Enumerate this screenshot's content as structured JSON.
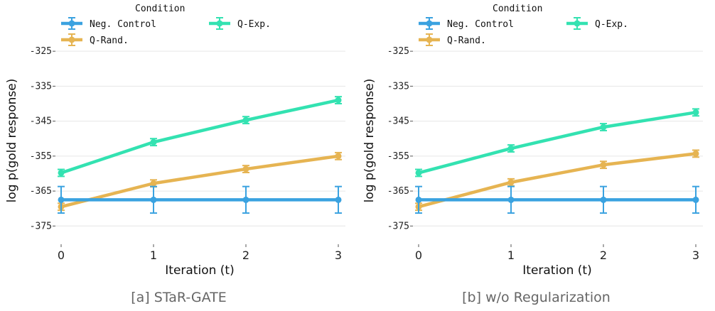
{
  "legend": {
    "title": "Condition"
  },
  "chart_data": [
    {
      "type": "line",
      "caption": "[a] STaR-GATE",
      "xlabel": "Iteration (t)",
      "ylabel": "log p(gold response)",
      "x": [
        0,
        1,
        2,
        3
      ],
      "x_ticks": [
        "0",
        "1",
        "2",
        "3"
      ],
      "y_ticks": [
        "-325",
        "-335",
        "-345",
        "-355",
        "-365",
        "-375"
      ],
      "y_tick_values": [
        -325,
        -335,
        -345,
        -355,
        -365,
        -375
      ],
      "ylim": [
        -379,
        -314
      ],
      "grid": true,
      "series": [
        {
          "name": "Neg. Control",
          "color": "#3aa2e0",
          "values": [
            -367.5,
            -367.5,
            -367.5,
            -367.5
          ],
          "err": [
            3.8,
            3.8,
            3.8,
            3.8
          ]
        },
        {
          "name": "Q-Exp.",
          "color": "#33e2b1",
          "values": [
            -359.8,
            -351.0,
            -344.7,
            -339.0
          ],
          "err": [
            1.0,
            1.0,
            1.0,
            1.0
          ]
        },
        {
          "name": "Q-Rand.",
          "color": "#e6b452",
          "values": [
            -369.5,
            -362.8,
            -358.7,
            -355.0
          ],
          "err": [
            1.0,
            1.0,
            1.0,
            1.0
          ]
        }
      ]
    },
    {
      "type": "line",
      "caption": "[b] w/o Regularization",
      "xlabel": "Iteration (t)",
      "ylabel": "log p(gold response)",
      "x": [
        0,
        1,
        2,
        3
      ],
      "x_ticks": [
        "0",
        "1",
        "2",
        "3"
      ],
      "y_ticks": [
        "-325",
        "-335",
        "-345",
        "-355",
        "-365",
        "-375"
      ],
      "y_tick_values": [
        -325,
        -335,
        -345,
        -355,
        -365,
        -375
      ],
      "ylim": [
        -379,
        -314
      ],
      "grid": true,
      "series": [
        {
          "name": "Neg. Control",
          "color": "#3aa2e0",
          "values": [
            -367.5,
            -367.5,
            -367.5,
            -367.5
          ],
          "err": [
            3.8,
            3.8,
            3.8,
            3.8
          ]
        },
        {
          "name": "Q-Exp.",
          "color": "#33e2b1",
          "values": [
            -359.8,
            -352.8,
            -346.7,
            -342.5
          ],
          "err": [
            1.0,
            1.0,
            1.0,
            1.0
          ]
        },
        {
          "name": "Q-Rand.",
          "color": "#e6b452",
          "values": [
            -369.5,
            -362.5,
            -357.5,
            -354.3
          ],
          "err": [
            1.0,
            1.0,
            1.0,
            1.0
          ]
        }
      ]
    }
  ]
}
